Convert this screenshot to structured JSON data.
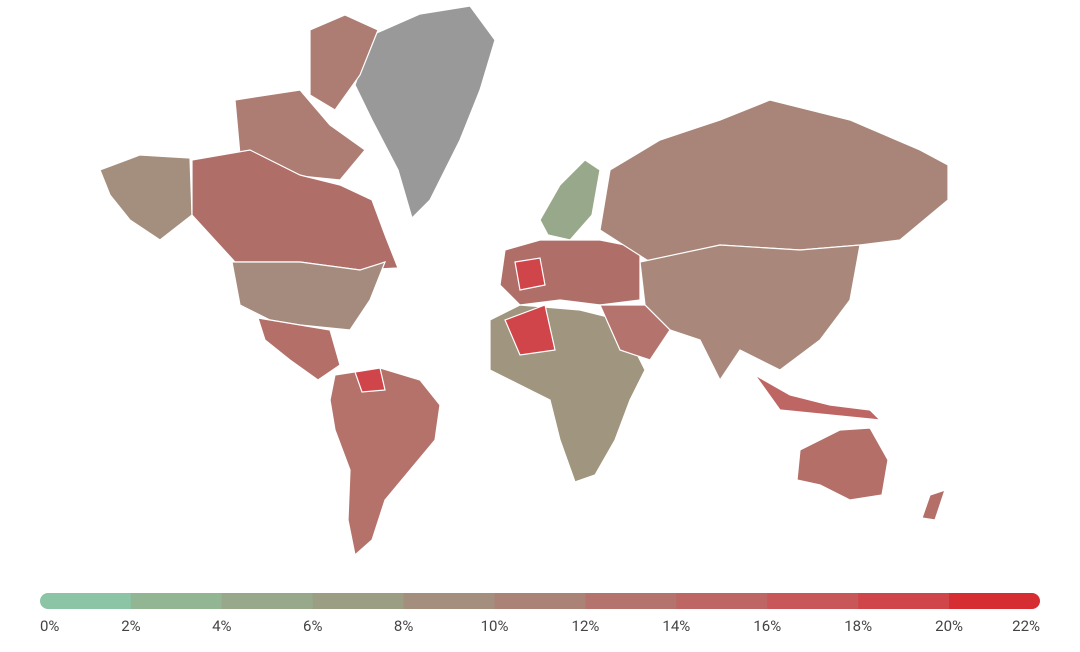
{
  "legend": {
    "range": [
      0,
      22
    ],
    "ticks": [
      {
        "value": 0,
        "label": "0%"
      },
      {
        "value": 2,
        "label": "2%"
      },
      {
        "value": 4,
        "label": "4%"
      },
      {
        "value": 6,
        "label": "6%"
      },
      {
        "value": 8,
        "label": "8%"
      },
      {
        "value": 10,
        "label": "10%"
      },
      {
        "value": 12,
        "label": "12%"
      },
      {
        "value": 14,
        "label": "14%"
      },
      {
        "value": 16,
        "label": "16%"
      },
      {
        "value": 18,
        "label": "18%"
      },
      {
        "value": 20,
        "label": "20%"
      },
      {
        "value": 22,
        "label": "22%"
      }
    ],
    "colors": [
      "#8cc4a6",
      "#92b594",
      "#97a98a",
      "#9c9e84",
      "#a48e7e",
      "#ab8276",
      "#b5736e",
      "#be6663",
      "#c75758",
      "#d0454a",
      "#d62d33"
    ]
  }
}
